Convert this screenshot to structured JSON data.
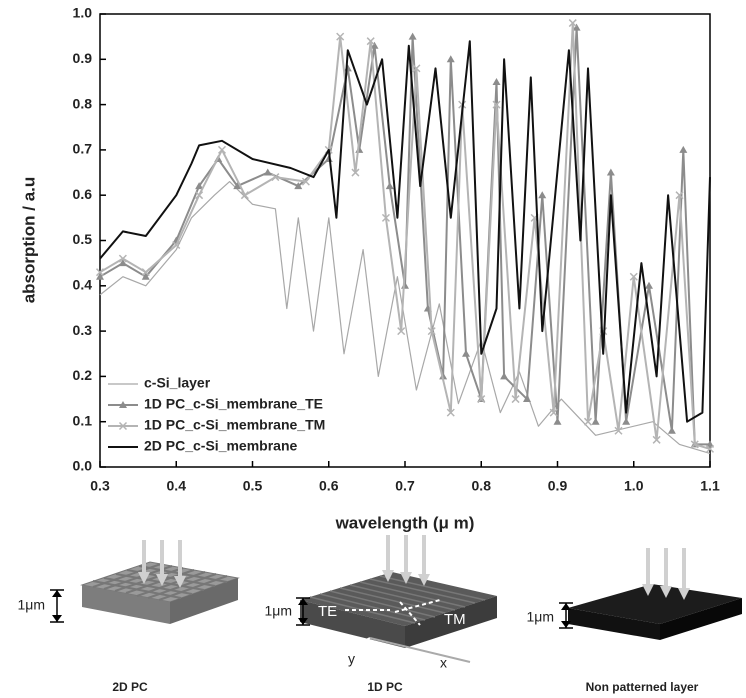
{
  "chart_data": {
    "type": "line",
    "xlabel": "wavelength (μ m)",
    "ylabel": "absorption / a.u",
    "xlim": [
      0.3,
      1.1
    ],
    "ylim": [
      0,
      1
    ],
    "xticks": [
      0.3,
      0.4,
      0.5,
      0.6,
      0.7,
      0.8,
      0.9,
      {
        "value": 1,
        "label": "1.0"
      },
      1.1
    ],
    "yticks": [
      {
        "value": 0,
        "label": "0.0"
      },
      0.1,
      0.2,
      0.3,
      0.4,
      0.5,
      0.6,
      0.7,
      0.8,
      0.9,
      {
        "value": 1,
        "label": "1.0"
      }
    ],
    "legend": "lower left",
    "series": [
      {
        "name": "c-Si_layer",
        "color": "#a8a8a8",
        "width": 1.2,
        "marker": "none",
        "x": [
          0.3,
          0.33,
          0.36,
          0.4,
          0.42,
          0.45,
          0.47,
          0.5,
          0.53,
          0.545,
          0.56,
          0.58,
          0.6,
          0.62,
          0.645,
          0.665,
          0.69,
          0.715,
          0.745,
          0.77,
          0.8,
          0.825,
          0.85,
          0.875,
          0.905,
          0.95,
          1.025,
          1.06,
          1.1
        ],
        "values": [
          0.38,
          0.42,
          0.4,
          0.48,
          0.55,
          0.6,
          0.63,
          0.58,
          0.57,
          0.35,
          0.55,
          0.3,
          0.55,
          0.25,
          0.48,
          0.2,
          0.42,
          0.17,
          0.36,
          0.14,
          0.28,
          0.12,
          0.21,
          0.09,
          0.15,
          0.07,
          0.1,
          0.05,
          0.03
        ]
      },
      {
        "name": "1D PC_c-Si_membrane_TE",
        "color": "#8c8c8c",
        "width": 2,
        "marker": "triangle",
        "x": [
          0.3,
          0.33,
          0.36,
          0.4,
          0.43,
          0.455,
          0.48,
          0.52,
          0.56,
          0.6,
          0.625,
          0.64,
          0.66,
          0.68,
          0.7,
          0.71,
          0.73,
          0.75,
          0.76,
          0.78,
          0.8,
          0.82,
          0.83,
          0.86,
          0.88,
          0.9,
          0.925,
          0.95,
          0.97,
          0.99,
          1.02,
          1.05,
          1.065,
          1.08,
          1.1
        ],
        "values": [
          0.42,
          0.45,
          0.42,
          0.5,
          0.62,
          0.68,
          0.62,
          0.65,
          0.62,
          0.68,
          0.88,
          0.7,
          0.93,
          0.62,
          0.4,
          0.95,
          0.35,
          0.2,
          0.9,
          0.25,
          0.15,
          0.85,
          0.2,
          0.15,
          0.6,
          0.1,
          0.97,
          0.1,
          0.65,
          0.1,
          0.4,
          0.08,
          0.7,
          0.05,
          0.05
        ]
      },
      {
        "name": "1D PC_c-Si_membrane_TM",
        "color": "#b4b4b4",
        "width": 2,
        "marker": "x",
        "x": [
          0.3,
          0.33,
          0.36,
          0.4,
          0.43,
          0.46,
          0.49,
          0.53,
          0.57,
          0.6,
          0.615,
          0.635,
          0.655,
          0.675,
          0.695,
          0.715,
          0.735,
          0.76,
          0.775,
          0.8,
          0.82,
          0.845,
          0.87,
          0.895,
          0.92,
          0.94,
          0.96,
          0.98,
          1.0,
          1.03,
          1.06,
          1.08,
          1.1
        ],
        "values": [
          0.43,
          0.46,
          0.43,
          0.49,
          0.6,
          0.7,
          0.6,
          0.64,
          0.63,
          0.7,
          0.95,
          0.65,
          0.94,
          0.55,
          0.3,
          0.88,
          0.3,
          0.12,
          0.8,
          0.15,
          0.8,
          0.15,
          0.55,
          0.12,
          0.98,
          0.1,
          0.3,
          0.08,
          0.42,
          0.06,
          0.6,
          0.05,
          0.04
        ]
      },
      {
        "name": "2D PC_c-Si_membrane",
        "color": "#111111",
        "width": 2,
        "marker": "none",
        "x": [
          0.3,
          0.33,
          0.36,
          0.4,
          0.42,
          0.43,
          0.46,
          0.5,
          0.55,
          0.58,
          0.6,
          0.61,
          0.625,
          0.65,
          0.67,
          0.69,
          0.705,
          0.72,
          0.74,
          0.76,
          0.785,
          0.8,
          0.82,
          0.83,
          0.85,
          0.865,
          0.88,
          0.915,
          0.93,
          0.94,
          0.96,
          0.97,
          0.99,
          1.01,
          1.03,
          1.045,
          1.07,
          1.09,
          1.1
        ],
        "values": [
          0.46,
          0.52,
          0.51,
          0.6,
          0.67,
          0.71,
          0.72,
          0.68,
          0.66,
          0.64,
          0.7,
          0.55,
          0.92,
          0.8,
          0.9,
          0.55,
          0.93,
          0.62,
          0.88,
          0.55,
          0.94,
          0.25,
          0.35,
          0.9,
          0.35,
          0.86,
          0.3,
          0.92,
          0.5,
          0.88,
          0.25,
          0.6,
          0.12,
          0.45,
          0.2,
          0.6,
          0.1,
          0.12,
          0.64
        ]
      }
    ]
  },
  "panels": [
    {
      "caption": "2D PC",
      "thickness": "1μm"
    },
    {
      "caption": "1D PC",
      "thickness": "1μm",
      "polarizations": [
        "TE",
        "TM"
      ],
      "axes": [
        "y",
        "x"
      ]
    },
    {
      "caption": "Non patterned layer",
      "thickness": "1μm"
    }
  ]
}
